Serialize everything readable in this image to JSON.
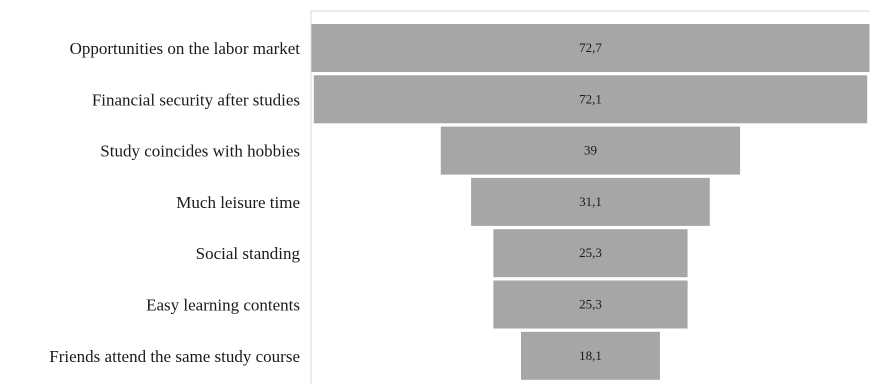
{
  "chart_data": {
    "type": "bar",
    "subtype": "funnel",
    "orientation": "horizontal",
    "categories": [
      "Opportunities on the labor market",
      "Financial security after studies",
      "Study coincides with hobbies",
      "Much leisure time",
      "Social standing",
      "Easy learning contents",
      "Friends attend the same study course"
    ],
    "values": [
      72.7,
      72.1,
      39,
      31.1,
      25.3,
      25.3,
      18.1
    ],
    "value_labels": [
      "72,7",
      "72,1",
      "39",
      "31,1",
      "25,3",
      "25,3",
      "18,1"
    ],
    "title": "",
    "xlabel": "",
    "ylabel": "",
    "bar_color": "#a6a6a6",
    "grid": false,
    "legend": "none"
  }
}
